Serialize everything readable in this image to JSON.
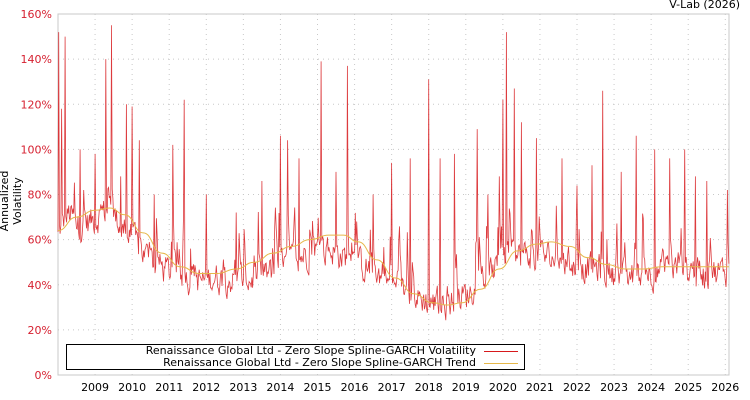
{
  "credit": "V-Lab (2026)",
  "chart_data": {
    "type": "line",
    "title": "",
    "xlabel": "",
    "ylabel": "Annualized Volatility",
    "ylim": [
      0,
      160
    ],
    "xlim": [
      2008.0,
      2026.1
    ],
    "grid": true,
    "legend_position": "bottom-left",
    "y_ticks": [
      "0%",
      "20%",
      "40%",
      "60%",
      "80%",
      "100%",
      "120%",
      "140%",
      "160%"
    ],
    "x_ticks": [
      "2009",
      "2010",
      "2011",
      "2012",
      "2013",
      "2014",
      "2015",
      "2016",
      "2017",
      "2018",
      "2019",
      "2020",
      "2021",
      "2022",
      "2023",
      "2024",
      "2025",
      "2026"
    ],
    "series": [
      {
        "name": "Renaissance Global Ltd - Zero Slope Spline-GARCH Volatility",
        "color": "#d7191c",
        "baseline_points": [
          [
            2008.0,
            60
          ],
          [
            2008.3,
            68
          ],
          [
            2008.6,
            62
          ],
          [
            2009.0,
            66
          ],
          [
            2009.4,
            70
          ],
          [
            2009.8,
            60
          ],
          [
            2010.2,
            52
          ],
          [
            2010.6,
            46
          ],
          [
            2011.0,
            42
          ],
          [
            2011.4,
            40
          ],
          [
            2011.8,
            38
          ],
          [
            2012.2,
            40
          ],
          [
            2012.6,
            39
          ],
          [
            2013.0,
            38
          ],
          [
            2013.4,
            40
          ],
          [
            2013.8,
            42
          ],
          [
            2014.2,
            46
          ],
          [
            2014.6,
            50
          ],
          [
            2015.0,
            52
          ],
          [
            2015.4,
            52
          ],
          [
            2015.8,
            48
          ],
          [
            2016.2,
            45
          ],
          [
            2016.6,
            42
          ],
          [
            2017.0,
            36
          ],
          [
            2017.4,
            33
          ],
          [
            2017.8,
            30
          ],
          [
            2018.2,
            28
          ],
          [
            2018.6,
            29
          ],
          [
            2019.0,
            32
          ],
          [
            2019.4,
            38
          ],
          [
            2019.8,
            44
          ],
          [
            2020.2,
            48
          ],
          [
            2020.6,
            50
          ],
          [
            2021.0,
            50
          ],
          [
            2021.4,
            48
          ],
          [
            2021.8,
            46
          ],
          [
            2022.2,
            44
          ],
          [
            2022.6,
            44
          ],
          [
            2023.0,
            40
          ],
          [
            2023.4,
            40
          ],
          [
            2023.8,
            42
          ],
          [
            2024.2,
            42
          ],
          [
            2024.6,
            44
          ],
          [
            2025.0,
            43
          ],
          [
            2025.4,
            42
          ],
          [
            2025.8,
            42
          ],
          [
            2026.1,
            44
          ]
        ],
        "peaks": [
          [
            2008.02,
            152
          ],
          [
            2008.1,
            118
          ],
          [
            2008.2,
            150
          ],
          [
            2008.6,
            100
          ],
          [
            2009.0,
            98
          ],
          [
            2009.28,
            140
          ],
          [
            2009.45,
            155
          ],
          [
            2009.7,
            88
          ],
          [
            2009.85,
            120
          ],
          [
            2010.0,
            119
          ],
          [
            2010.2,
            104
          ],
          [
            2010.6,
            80
          ],
          [
            2011.1,
            102
          ],
          [
            2011.4,
            122
          ],
          [
            2012.0,
            80
          ],
          [
            2012.8,
            72
          ],
          [
            2013.5,
            86
          ],
          [
            2014.0,
            106
          ],
          [
            2014.2,
            104
          ],
          [
            2014.5,
            96
          ],
          [
            2015.1,
            139
          ],
          [
            2015.5,
            90
          ],
          [
            2015.8,
            137
          ],
          [
            2016.5,
            80
          ],
          [
            2017.0,
            94
          ],
          [
            2017.5,
            96
          ],
          [
            2018.0,
            131
          ],
          [
            2018.3,
            96
          ],
          [
            2018.7,
            98
          ],
          [
            2019.3,
            109
          ],
          [
            2019.6,
            80
          ],
          [
            2019.9,
            88
          ],
          [
            2020.0,
            122
          ],
          [
            2020.1,
            152
          ],
          [
            2020.3,
            127
          ],
          [
            2020.5,
            112
          ],
          [
            2020.9,
            105
          ],
          [
            2021.6,
            96
          ],
          [
            2022.0,
            84
          ],
          [
            2022.4,
            93
          ],
          [
            2022.7,
            126
          ],
          [
            2023.2,
            90
          ],
          [
            2023.6,
            106
          ],
          [
            2024.1,
            100
          ],
          [
            2024.5,
            96
          ],
          [
            2024.9,
            100
          ],
          [
            2025.2,
            88
          ],
          [
            2025.5,
            86
          ],
          [
            2026.05,
            82
          ]
        ]
      },
      {
        "name": "Renaissance Global Ltd - Zero Slope Spline-GARCH Trend",
        "color": "#e6b84a",
        "points": [
          [
            2008.0,
            64
          ],
          [
            2008.5,
            70
          ],
          [
            2009.0,
            73
          ],
          [
            2009.4,
            74
          ],
          [
            2009.8,
            71
          ],
          [
            2010.3,
            63
          ],
          [
            2010.8,
            54
          ],
          [
            2011.3,
            48
          ],
          [
            2011.8,
            45
          ],
          [
            2012.3,
            45
          ],
          [
            2012.8,
            47
          ],
          [
            2013.3,
            50
          ],
          [
            2013.8,
            54
          ],
          [
            2014.3,
            57
          ],
          [
            2014.8,
            60
          ],
          [
            2015.3,
            62
          ],
          [
            2015.7,
            62
          ],
          [
            2016.1,
            59
          ],
          [
            2016.6,
            51
          ],
          [
            2017.1,
            43
          ],
          [
            2017.6,
            36
          ],
          [
            2018.1,
            32
          ],
          [
            2018.5,
            31
          ],
          [
            2018.9,
            32
          ],
          [
            2019.4,
            38
          ],
          [
            2019.9,
            47
          ],
          [
            2020.4,
            55
          ],
          [
            2020.9,
            58
          ],
          [
            2021.3,
            59
          ],
          [
            2021.8,
            57
          ],
          [
            2022.3,
            52
          ],
          [
            2022.8,
            49
          ],
          [
            2023.3,
            47
          ],
          [
            2023.8,
            47
          ],
          [
            2024.3,
            48
          ],
          [
            2024.8,
            48
          ],
          [
            2025.3,
            48
          ],
          [
            2025.8,
            48
          ],
          [
            2026.1,
            48
          ]
        ]
      }
    ]
  },
  "legend": {
    "items": [
      {
        "label": "Renaissance Global Ltd - Zero Slope Spline-GARCH Volatility",
        "color": "#d7191c"
      },
      {
        "label": "Renaissance Global Ltd - Zero Slope Spline-GARCH Trend",
        "color": "#e6b84a"
      }
    ]
  }
}
